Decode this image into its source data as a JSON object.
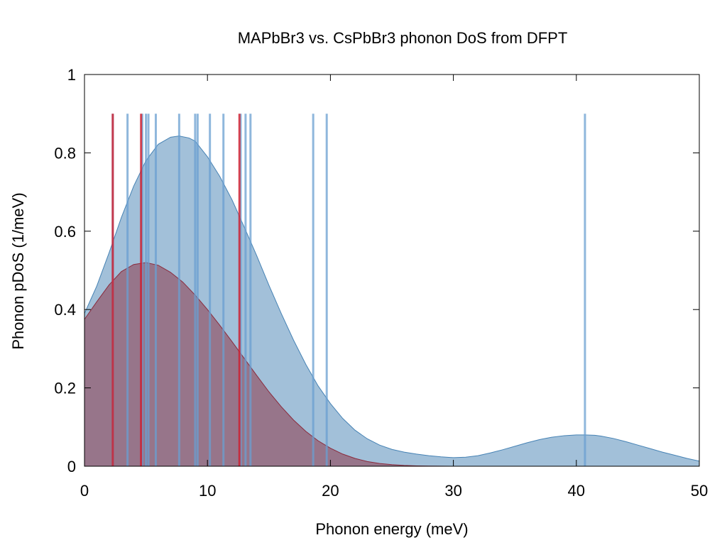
{
  "chart_data": {
    "type": "area",
    "title": "MAPbBr3 vs. CsPbBr3 phonon DoS from DFPT",
    "xlabel": "Phonon energy (meV)",
    "ylabel": "Phonon pDoS (1/meV)",
    "xlim": [
      0,
      50
    ],
    "ylim": [
      0,
      1
    ],
    "xticks": [
      0,
      10,
      20,
      30,
      40,
      50
    ],
    "yticks": [
      0,
      0.2,
      0.4,
      0.6,
      0.8,
      1
    ],
    "xtick_labels": [
      "0",
      "10",
      "20",
      "30",
      "40",
      "50"
    ],
    "ytick_labels": [
      "0",
      "0.2",
      "0.4",
      "0.6",
      "0.8",
      "1"
    ],
    "grid": false,
    "legend": "none",
    "series": [
      {
        "color": "#4682b4",
        "fill_opacity": 0.5,
        "x": [
          0,
          1,
          2,
          3,
          4,
          5,
          6,
          7,
          7.7,
          8.5,
          9,
          10,
          11,
          12,
          13,
          14,
          15,
          16,
          17,
          18,
          19,
          20,
          21,
          22,
          23,
          24,
          25,
          26,
          27,
          28,
          29,
          30,
          31,
          32,
          33,
          34,
          35,
          36,
          37,
          38,
          39,
          40,
          40.7,
          41.5,
          42,
          43,
          44,
          45,
          46,
          47,
          48,
          49,
          50
        ],
        "y": [
          0.39,
          0.46,
          0.545,
          0.635,
          0.715,
          0.78,
          0.822,
          0.84,
          0.843,
          0.838,
          0.83,
          0.79,
          0.74,
          0.68,
          0.61,
          0.538,
          0.462,
          0.39,
          0.322,
          0.26,
          0.205,
          0.16,
          0.122,
          0.092,
          0.07,
          0.054,
          0.043,
          0.036,
          0.031,
          0.027,
          0.024,
          0.022,
          0.023,
          0.027,
          0.034,
          0.042,
          0.051,
          0.06,
          0.068,
          0.074,
          0.078,
          0.08,
          0.08,
          0.079,
          0.077,
          0.071,
          0.063,
          0.054,
          0.045,
          0.036,
          0.028,
          0.02,
          0.013
        ],
        "modes": [
          2.3,
          3.5,
          4.7,
          5.0,
          5.2,
          5.8,
          7.7,
          9.0,
          9.2,
          10.2,
          11.3,
          12.7,
          13.1,
          13.5,
          18.6,
          19.7,
          40.7
        ],
        "mode_height": 0.9
      },
      {
        "color": "#8b2a3c",
        "fill_opacity": 0.5,
        "x": [
          0,
          1,
          2,
          3,
          4,
          5,
          6,
          7,
          8,
          9,
          10,
          11,
          12,
          13,
          14,
          15,
          16,
          17,
          18,
          19,
          20,
          21,
          22,
          23,
          24,
          25,
          26,
          27,
          28,
          29,
          30
        ],
        "y": [
          0.375,
          0.42,
          0.463,
          0.497,
          0.515,
          0.52,
          0.513,
          0.495,
          0.47,
          0.437,
          0.4,
          0.36,
          0.318,
          0.275,
          0.232,
          0.19,
          0.152,
          0.118,
          0.089,
          0.065,
          0.046,
          0.031,
          0.02,
          0.012,
          0.007,
          0.004,
          0.002,
          0.001,
          0.0005,
          0.0002,
          0
        ],
        "modes": [
          2.3,
          4.6,
          12.6
        ],
        "mode_height": 0.9
      }
    ]
  }
}
